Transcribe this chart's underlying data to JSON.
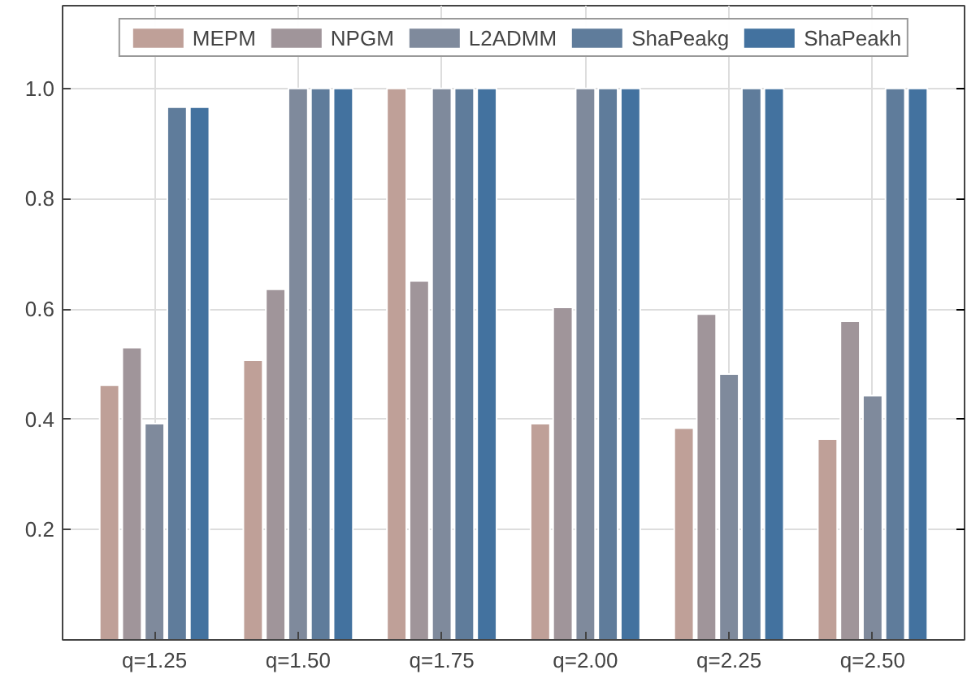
{
  "chart_data": {
    "type": "bar",
    "categories": [
      "q=1.25",
      "q=1.50",
      "q=1.75",
      "q=2.00",
      "q=2.25",
      "q=2.50"
    ],
    "series": [
      {
        "name": "MEPM",
        "color": "#bfa098",
        "values": [
          0.462,
          0.507,
          1.0,
          0.392,
          0.384,
          0.364
        ]
      },
      {
        "name": "NPGM",
        "color": "#a0959a",
        "values": [
          0.53,
          0.636,
          0.651,
          0.603,
          0.591,
          0.578
        ]
      },
      {
        "name": "L2ADMM",
        "color": "#7f8a9c",
        "values": [
          0.392,
          1.0,
          1.0,
          1.0,
          0.482,
          0.443
        ]
      },
      {
        "name": "ShaPeakg",
        "color": "#5f7c9b",
        "values": [
          0.966,
          1.0,
          1.0,
          1.0,
          1.0,
          1.0
        ]
      },
      {
        "name": "ShaPeakh",
        "color": "#43729f",
        "values": [
          0.966,
          1.0,
          1.0,
          1.0,
          1.0,
          1.0
        ]
      }
    ],
    "ylim": [
      0,
      1.15
    ],
    "yticks": [
      0.2,
      0.4,
      0.6,
      0.8,
      {
        "value": 1,
        "label": "1.0"
      }
    ],
    "grid": true,
    "legend": "top"
  }
}
